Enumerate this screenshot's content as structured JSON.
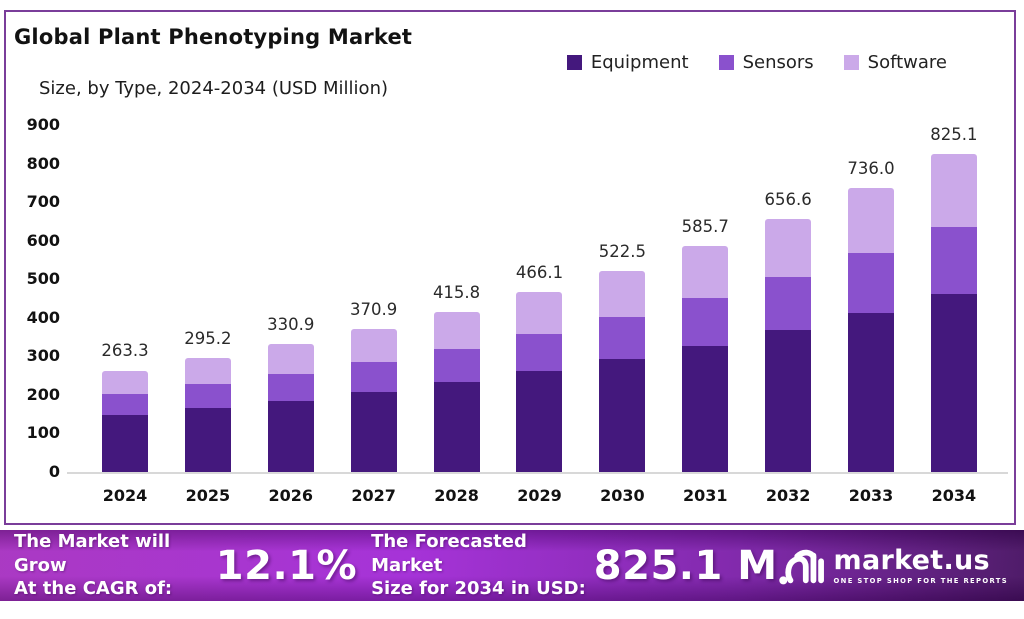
{
  "header": {
    "title": "Global Plant Phenotyping Market",
    "subtitle": "Size, by Type, 2024-2034 (USD Million)"
  },
  "legend": [
    {
      "label": "Equipment",
      "color": "#44187D"
    },
    {
      "label": "Sensors",
      "color": "#8A51CD"
    },
    {
      "label": "Software",
      "color": "#CBA9E9"
    }
  ],
  "chart_data": {
    "type": "bar",
    "stacked": true,
    "title": "Global Plant Phenotyping Market Size, by Type, 2024-2034 (USD Million)",
    "categories": [
      "2024",
      "2025",
      "2026",
      "2027",
      "2028",
      "2029",
      "2030",
      "2031",
      "2032",
      "2033",
      "2034"
    ],
    "totals": [
      263.3,
      295.2,
      330.9,
      370.9,
      415.8,
      466.1,
      522.5,
      585.7,
      656.6,
      736.0,
      825.1
    ],
    "series": [
      {
        "name": "Equipment",
        "color": "#44187D",
        "values": [
          147.4,
          165.3,
          185.3,
          207.7,
          232.8,
          261.0,
          292.6,
          328.0,
          367.7,
          412.2,
          462.1
        ]
      },
      {
        "name": "Sensors",
        "color": "#8A51CD",
        "values": [
          55.3,
          62.0,
          69.5,
          77.9,
          87.3,
          97.9,
          109.7,
          123.0,
          137.9,
          154.6,
          173.3
        ]
      },
      {
        "name": "Software",
        "color": "#CBA9E9",
        "values": [
          60.6,
          67.9,
          76.1,
          85.3,
          95.7,
          107.2,
          120.2,
          134.7,
          151.0,
          169.2,
          189.7
        ]
      }
    ],
    "series_note": "Segment splits estimated from bar pixel heights; stack totals are the labeled values",
    "xlabel": "",
    "ylabel": "",
    "ylim": [
      0,
      900
    ],
    "ytick_step": 100,
    "grid": false,
    "legend_position": "top-right",
    "value_labels": "above bars, one decimal"
  },
  "footer": {
    "cagr_line1": "The Market will Grow",
    "cagr_line2": "At the CAGR of:",
    "cagr_value": "12.1%",
    "forecast_line1": "The Forecasted Market",
    "forecast_line2": "Size for 2034 in USD:",
    "forecast_value": "825.1 M",
    "brand": {
      "name": "market.us",
      "tagline": "ONE STOP SHOP FOR THE REPORTS"
    }
  },
  "colors": {
    "panel_border": "#7A3D9A",
    "baseline": "#D8D8D8",
    "footer_gradient": [
      "#A62FC0",
      "#A128D6",
      "#7B1FA8",
      "#461061"
    ]
  }
}
